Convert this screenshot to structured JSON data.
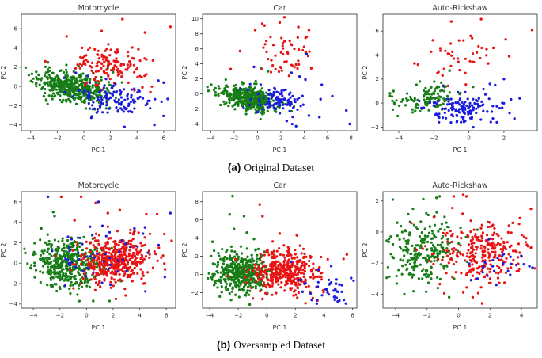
{
  "colors": {
    "red": "#ea1313",
    "green": "#177d17",
    "blue": "#1c1cdd",
    "axis": "#444444",
    "title": "#3a3a3a",
    "tick": "#333333",
    "caption": "#111111"
  },
  "captions": {
    "a": {
      "tag": "(a)",
      "text": "Original Dataset"
    },
    "b": {
      "tag": "(b)",
      "text": "Oversampled Dataset"
    }
  },
  "chart_data": [
    {
      "id": "motorcycle-original",
      "group": "a",
      "type": "scatter",
      "title": "Motorcycle",
      "xlabel": "PC 1",
      "ylabel": "PC 2",
      "xlim": [
        -4.7,
        6.9
      ],
      "ylim": [
        -4.6,
        7.5
      ],
      "xticks": [
        -4,
        -2,
        0,
        2,
        4,
        6
      ],
      "yticks": [
        -4,
        -2,
        0,
        2,
        4,
        6
      ],
      "grid": false,
      "legend": "none",
      "seed": 11,
      "series": [
        {
          "name": "green-class",
          "color": "green",
          "clusters": [
            {
              "n": 470,
              "cx": -0.9,
              "cy": -0.1,
              "sx": 1.3,
              "sy": 0.75,
              "tilt": -0.22
            }
          ],
          "points": [
            [
              -3.9,
              1.3
            ],
            [
              -3.4,
              1.2
            ],
            [
              -2.7,
              2.5
            ]
          ]
        },
        {
          "name": "red-class",
          "color": "red",
          "clusters": [
            {
              "n": 140,
              "cx": 1.9,
              "cy": 2.4,
              "sx": 1.4,
              "sy": 1.05,
              "tilt": -0.1
            }
          ],
          "points": [
            [
              2.9,
              7.0
            ],
            [
              6.5,
              6.2
            ],
            [
              -2.9,
              2.6
            ],
            [
              -1.3,
              5.2
            ],
            [
              4.6,
              5.6
            ],
            [
              5.2,
              2.7
            ],
            [
              4.4,
              -0.1
            ],
            [
              5.0,
              -0.6
            ],
            [
              3.8,
              -0.4
            ],
            [
              1.3,
              -0.4
            ]
          ]
        },
        {
          "name": "blue-class",
          "color": "blue",
          "clusters": [
            {
              "n": 120,
              "cx": 2.3,
              "cy": -1.4,
              "sx": 1.4,
              "sy": 0.85,
              "tilt": -0.18
            }
          ],
          "points": [
            [
              5.3,
              -4.0
            ],
            [
              6.3,
              -1.3
            ],
            [
              6.0,
              0.4
            ],
            [
              5.6,
              0.6
            ],
            [
              -0.6,
              1.4
            ],
            [
              -1.5,
              0.9
            ],
            [
              0.3,
              1.1
            ]
          ]
        }
      ]
    },
    {
      "id": "car-original",
      "group": "a",
      "type": "scatter",
      "title": "Car",
      "xlabel": "PC 1",
      "ylabel": "PC 2",
      "xlim": [
        -4.7,
        8.5
      ],
      "ylim": [
        -4.9,
        10.6
      ],
      "xticks": [
        -4,
        -2,
        0,
        2,
        4,
        6,
        8
      ],
      "yticks": [
        -4,
        -2,
        0,
        2,
        4,
        6,
        8,
        10
      ],
      "grid": false,
      "legend": "none",
      "seed": 22,
      "series": [
        {
          "name": "green-class",
          "color": "green",
          "clusters": [
            {
              "n": 440,
              "cx": -0.7,
              "cy": -0.6,
              "sx": 1.15,
              "sy": 0.75,
              "tilt": -0.28
            }
          ],
          "points": [
            [
              -4.2,
              0.4
            ],
            [
              -3.6,
              0.2
            ],
            [
              0.9,
              3.0
            ],
            [
              0.3,
              3.4
            ]
          ]
        },
        {
          "name": "red-class",
          "color": "red",
          "clusters": [
            {
              "n": 50,
              "cx": 2.0,
              "cy": 5.6,
              "sx": 1.2,
              "sy": 1.7,
              "tilt": 0
            }
          ],
          "points": [
            [
              -2.3,
              3.3
            ],
            [
              -1.5,
              5.7
            ],
            [
              -0.2,
              8.5
            ],
            [
              2.3,
              10.2
            ],
            [
              1.9,
              9.5
            ],
            [
              4.4,
              8.5
            ],
            [
              4.2,
              7.6
            ],
            [
              3.3,
              3.9
            ],
            [
              4.6,
              3.4
            ],
            [
              0.6,
              9.1
            ],
            [
              3.5,
              8.9
            ]
          ]
        },
        {
          "name": "blue-class",
          "color": "blue",
          "clusters": [
            {
              "n": 95,
              "cx": 1.8,
              "cy": -0.9,
              "sx": 1.1,
              "sy": 0.85,
              "tilt": -0.15
            }
          ],
          "points": [
            [
              4.2,
              5.3
            ],
            [
              -0.3,
              3.6
            ],
            [
              2.9,
              2.8
            ],
            [
              3.6,
              2.3
            ],
            [
              4.1,
              1.9
            ],
            [
              5.5,
              1.2
            ],
            [
              6.4,
              -0.3
            ],
            [
              5.4,
              -0.7
            ],
            [
              7.6,
              -2.2
            ],
            [
              7.9,
              -4.0
            ],
            [
              5.3,
              -3.1
            ],
            [
              4.4,
              -2.9
            ],
            [
              3.3,
              -4.3
            ],
            [
              2.5,
              -3.6
            ]
          ]
        }
      ]
    },
    {
      "id": "auto-rickshaw-original",
      "group": "a",
      "type": "scatter",
      "title": "Auto-Rickshaw",
      "xlabel": "PC 1",
      "ylabel": "PC 2",
      "xlim": [
        -4.9,
        3.9
      ],
      "ylim": [
        -2.3,
        7.4
      ],
      "xticks": [
        -4,
        -2,
        0,
        2
      ],
      "yticks": [
        -2,
        0,
        2,
        4,
        6
      ],
      "grid": false,
      "legend": "none",
      "seed": 33,
      "series": [
        {
          "name": "green-class",
          "color": "green",
          "clusters": [
            {
              "n": 115,
              "cx": -2.4,
              "cy": 0.4,
              "sx": 0.95,
              "sy": 0.55,
              "tilt": 0.12
            }
          ],
          "points": [
            [
              -1.1,
              2.7
            ],
            [
              -4.5,
              0.8
            ],
            [
              -4.3,
              1.0
            ]
          ]
        },
        {
          "name": "blue-class",
          "color": "blue",
          "clusters": [
            {
              "n": 135,
              "cx": -0.4,
              "cy": -0.5,
              "sx": 0.95,
              "sy": 0.62,
              "tilt": 0.05
            }
          ],
          "points": [
            [
              2.0,
              2.0
            ],
            [
              2.9,
              0.4
            ],
            [
              2.4,
              0.3
            ],
            [
              1.9,
              -0.4
            ],
            [
              2.6,
              -1.3
            ],
            [
              1.6,
              -1.6
            ],
            [
              1.2,
              1.6
            ],
            [
              1.5,
              1.5
            ]
          ]
        },
        {
          "name": "red-class",
          "color": "red",
          "clusters": [
            {
              "n": 34,
              "cx": -0.6,
              "cy": 3.8,
              "sx": 1.15,
              "sy": 0.95,
              "tilt": 0.1
            }
          ],
          "points": [
            [
              0.7,
              7.0
            ],
            [
              -1.0,
              6.8
            ],
            [
              3.6,
              6.1
            ],
            [
              2.1,
              5.3
            ],
            [
              0.1,
              5.6
            ],
            [
              -2.9,
              3.2
            ],
            [
              -3.1,
              3.3
            ],
            [
              1.4,
              4.6
            ],
            [
              2.3,
              3.9
            ],
            [
              1.1,
              3.3
            ],
            [
              -0.2,
              2.5
            ],
            [
              -1.5,
              2.3
            ]
          ]
        }
      ]
    },
    {
      "id": "motorcycle-oversampled",
      "group": "b",
      "type": "scatter",
      "title": "Motorcycle",
      "xlabel": "PC 1",
      "ylabel": "PC 2",
      "xlim": [
        -4.9,
        6.7
      ],
      "ylim": [
        -4.4,
        7.0
      ],
      "xticks": [
        -4,
        -2,
        0,
        2,
        4,
        6
      ],
      "yticks": [
        -4,
        -2,
        0,
        2,
        4,
        6
      ],
      "grid": false,
      "legend": "none",
      "seed": 44,
      "series": [
        {
          "name": "green-class",
          "color": "green",
          "clusters": [
            {
              "n": 430,
              "cx": -1.5,
              "cy": -0.2,
              "sx": 1.25,
              "sy": 1.1,
              "tilt": 0
            }
          ],
          "points": [
            [
              -2.5,
              5.0
            ],
            [
              -2.4,
              4.6
            ],
            [
              0.5,
              -3.7
            ],
            [
              -3.4,
              3.4
            ],
            [
              -4.6,
              1.0
            ]
          ]
        },
        {
          "name": "red-class",
          "color": "red",
          "clusters": [
            {
              "n": 430,
              "cx": 2.1,
              "cy": 0.3,
              "sx": 1.3,
              "sy": 1.25,
              "tilt": 0.08
            }
          ],
          "points": [
            [
              -1.9,
              6.5
            ],
            [
              -0.4,
              6.5
            ],
            [
              0.7,
              5.9
            ],
            [
              2.5,
              5.2
            ],
            [
              4.5,
              4.8
            ],
            [
              5.3,
              4.8
            ],
            [
              6.4,
              2.2
            ],
            [
              2.2,
              -3.5
            ],
            [
              5.9,
              -0.6
            ],
            [
              -0.9,
              4.2
            ],
            [
              1.6,
              4.9
            ]
          ]
        },
        {
          "name": "blue-class",
          "color": "blue",
          "clusters": [
            {
              "n": 50,
              "cx": 1.5,
              "cy": 0.6,
              "sx": 1.9,
              "sy": 1.5,
              "tilt": 0
            }
          ],
          "points": [
            [
              -2.9,
              6.5
            ],
            [
              0.9,
              6.0
            ],
            [
              6.3,
              4.9
            ],
            [
              -2.6,
              1.2
            ],
            [
              -1.6,
              -2.2
            ],
            [
              3.6,
              3.4
            ],
            [
              4.4,
              3.5
            ]
          ]
        }
      ]
    },
    {
      "id": "car-oversampled",
      "group": "b",
      "type": "scatter",
      "title": "Car",
      "xlabel": "PC 1",
      "ylabel": "PC 2",
      "xlim": [
        -4.5,
        6.3
      ],
      "ylim": [
        -3.7,
        9.1
      ],
      "xticks": [
        -4,
        -2,
        0,
        2,
        4,
        6
      ],
      "yticks": [
        -2,
        0,
        2,
        4,
        6,
        8
      ],
      "grid": false,
      "legend": "none",
      "seed": 55,
      "series": [
        {
          "name": "green-class",
          "color": "green",
          "clusters": [
            {
              "n": 440,
              "cx": -1.9,
              "cy": 0.2,
              "sx": 1.05,
              "sy": 1.1,
              "tilt": 0
            }
          ],
          "points": [
            [
              -2.4,
              8.6
            ],
            [
              -2.6,
              6.6
            ],
            [
              -1.6,
              6.4
            ],
            [
              -2.3,
              5.0
            ],
            [
              -1.4,
              4.6
            ],
            [
              -0.9,
              3.9
            ],
            [
              -2.5,
              -2.8
            ],
            [
              -1.2,
              -3.3
            ],
            [
              -3.8,
              3.6
            ]
          ]
        },
        {
          "name": "red-class",
          "color": "red",
          "clusters": [
            {
              "n": 390,
              "cx": 1.3,
              "cy": 0.3,
              "sx": 1.25,
              "sy": 1.1,
              "tilt": -0.08
            }
          ],
          "points": [
            [
              -0.5,
              7.7
            ],
            [
              -0.3,
              6.4
            ],
            [
              0.9,
              4.5
            ],
            [
              2.1,
              4.3
            ],
            [
              5.6,
              2.2
            ],
            [
              -0.3,
              -2.7
            ],
            [
              0.0,
              -2.2
            ]
          ]
        },
        {
          "name": "blue-class",
          "color": "blue",
          "clusters": [
            {
              "n": 38,
              "cx": 4.6,
              "cy": -1.6,
              "sx": 0.85,
              "sy": 0.85,
              "tilt": 0
            }
          ],
          "points": [
            [
              1.7,
              1.4
            ],
            [
              2.4,
              -0.6
            ],
            [
              3.6,
              0.5
            ],
            [
              5.9,
              -0.4
            ],
            [
              5.0,
              -3.0
            ],
            [
              3.5,
              -3.2
            ],
            [
              2.5,
              -1.9
            ]
          ]
        }
      ]
    },
    {
      "id": "auto-rickshaw-oversampled",
      "group": "b",
      "type": "scatter",
      "title": "Auto-Rickshaw",
      "xlabel": "PC 1",
      "ylabel": "PC 2",
      "xlim": [
        -4.8,
        5.0
      ],
      "ylim": [
        -4.9,
        2.6
      ],
      "xticks": [
        -4,
        -2,
        0,
        2,
        4
      ],
      "yticks": [
        -4,
        -2,
        0,
        2
      ],
      "grid": false,
      "legend": "none",
      "seed": 66,
      "series": [
        {
          "name": "green-class",
          "color": "green",
          "clusters": [
            {
              "n": 235,
              "cx": -2.1,
              "cy": -1.3,
              "sx": 1.05,
              "sy": 1.0,
              "tilt": 0.12
            }
          ],
          "points": [
            [
              -1.2,
              2.3
            ],
            [
              -1.4,
              2.2
            ],
            [
              -0.6,
              -4.2
            ],
            [
              -3.9,
              0.6
            ],
            [
              -4.3,
              -0.3
            ]
          ]
        },
        {
          "name": "red-class",
          "color": "red",
          "clusters": [
            {
              "n": 265,
              "cx": 1.4,
              "cy": -1.2,
              "sx": 1.3,
              "sy": 1.0,
              "tilt": 0.08
            }
          ],
          "points": [
            [
              0.3,
              2.4
            ],
            [
              0.5,
              2.3
            ],
            [
              4.6,
              1.5
            ],
            [
              1.5,
              -4.6
            ],
            [
              0.9,
              -4.2
            ],
            [
              -0.3,
              2.3
            ],
            [
              4.4,
              -0.9
            ],
            [
              4.6,
              -1.0
            ],
            [
              3.9,
              0.9
            ]
          ]
        },
        {
          "name": "blue-class",
          "color": "blue",
          "clusters": [
            {
              "n": 20,
              "cx": 2.7,
              "cy": -2.1,
              "sx": 0.9,
              "sy": 0.55,
              "tilt": 0
            }
          ],
          "points": [
            [
              4.5,
              -2.2
            ],
            [
              4.7,
              -2.3
            ],
            [
              2.4,
              -3.4
            ],
            [
              1.2,
              -3.0
            ],
            [
              0.8,
              -3.1
            ],
            [
              3.3,
              -1.6
            ]
          ]
        }
      ]
    }
  ]
}
